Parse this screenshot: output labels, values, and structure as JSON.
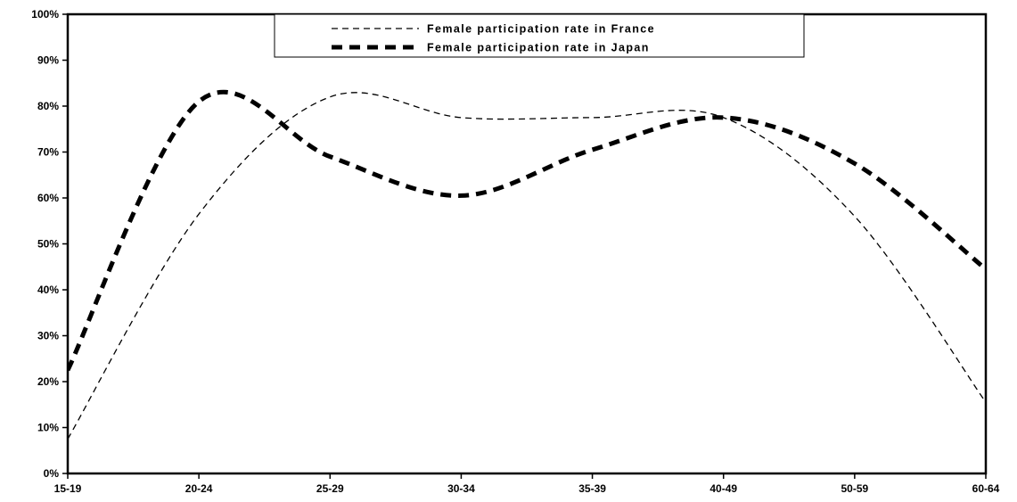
{
  "chart_data": {
    "type": "line",
    "title": "",
    "xlabel": "",
    "ylabel": "",
    "categories": [
      "15-19",
      "20-24",
      "25-29",
      "30-34",
      "35-39",
      "40-49",
      "50-59",
      "60-64"
    ],
    "ylim": [
      0,
      100
    ],
    "yticks": [
      "0%",
      "10%",
      "20%",
      "30%",
      "40%",
      "50%",
      "60%",
      "70%",
      "80%",
      "90%",
      "100%"
    ],
    "grid": false,
    "legend_position": "top-center",
    "smooth": true,
    "series": [
      {
        "name": "Female participation rate in France",
        "style": "thin-dashed",
        "color": "#000000",
        "values": [
          7.5,
          56.5,
          82,
          77.5,
          77.5,
          77.5,
          56,
          15.5
        ]
      },
      {
        "name": "Female participation rate in Japan",
        "style": "thick-dashed",
        "color": "#000000",
        "values": [
          22.5,
          81,
          69,
          60.5,
          70.5,
          77.5,
          67.5,
          44.5
        ]
      }
    ]
  }
}
